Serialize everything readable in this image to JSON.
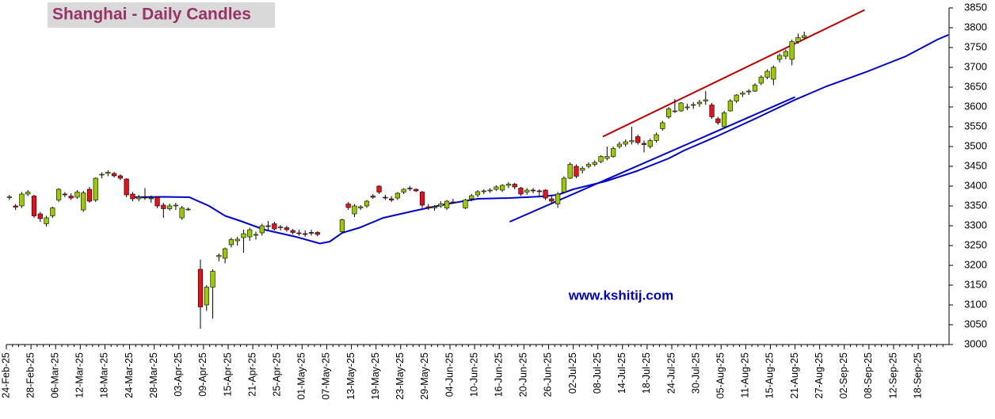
{
  "chart_data": {
    "type": "candlestick",
    "title": "Shanghai - Daily Candles",
    "watermark": "www.kshitij.com",
    "categories": [
      "24-Feb-25",
      null,
      null,
      null,
      "28-Feb-25",
      null,
      null,
      null,
      "06-Mar-25",
      null,
      null,
      null,
      "12-Mar-25",
      null,
      null,
      null,
      "18-Mar-25",
      null,
      null,
      null,
      "24-Mar-25",
      null,
      null,
      null,
      "28-Mar-25",
      null,
      null,
      null,
      "03-Apr-25",
      null,
      null,
      null,
      "09-Apr-25",
      null,
      null,
      null,
      "15-Apr-25",
      null,
      null,
      null,
      "21-Apr-25",
      null,
      null,
      null,
      "25-Apr-25",
      null,
      null,
      null,
      "01-May-25",
      null,
      null,
      null,
      "07-May-25",
      null,
      null,
      null,
      "13-May-25",
      null,
      null,
      null,
      "19-May-25",
      null,
      null,
      null,
      "23-May-25",
      null,
      null,
      null,
      "29-May-25",
      null,
      null,
      null,
      "04-Jun-25",
      null,
      null,
      null,
      "10-Jun-25",
      null,
      null,
      null,
      "16-Jun-25",
      null,
      null,
      null,
      "20-Jun-25",
      null,
      null,
      null,
      "26-Jun-25",
      null,
      null,
      null,
      "02-Jul-25",
      null,
      null,
      null,
      "08-Jul-25",
      null,
      null,
      null,
      "14-Jul-25",
      null,
      null,
      null,
      "18-Jul-25",
      null,
      null,
      null,
      "24-Jul-25",
      null,
      null,
      null,
      "30-Jul-25",
      null,
      null,
      null,
      "05-Aug-25",
      null,
      null,
      null,
      "11-Aug-25",
      null,
      null,
      null,
      "15-Aug-25",
      null,
      null,
      null,
      "21-Aug-25",
      null,
      null,
      null,
      "27-Aug-25",
      null,
      null,
      null,
      "02-Sep-25",
      null,
      null,
      null,
      "08-Sep-25",
      null,
      null,
      null,
      "12-Sep-25",
      null,
      null,
      null,
      "18-Sep-25",
      null,
      null,
      null,
      null
    ],
    "open": [
      3372,
      3350,
      3350,
      3380,
      3375,
      3330,
      3305,
      3325,
      3365,
      3380,
      3375,
      3372,
      3340,
      3392,
      3365,
      3428,
      3432,
      3432,
      3426,
      3418,
      3380,
      3368,
      3372,
      3368,
      3372,
      3352,
      3343,
      3350,
      3320,
      3342,
      null,
      3190,
      3100,
      3145,
      3222,
      3218,
      3252,
      3262,
      3270,
      3272,
      3277,
      3282,
      3300,
      3305,
      3296,
      3295,
      3288,
      3282,
      3280,
      3283,
      3283,
      null,
      null,
      null,
      3285,
      3355,
      3330,
      3345,
      3350,
      3375,
      3400,
      3372,
      3368,
      3370,
      3385,
      3395,
      3392,
      3385,
      3348,
      3345,
      3350,
      3345,
      3360,
      null,
      3345,
      3368,
      3378,
      3386,
      3388,
      3392,
      3390,
      3402,
      3405,
      3395,
      3385,
      3390,
      3388,
      3390,
      3368,
      3355,
      3385,
      3420,
      3450,
      3440,
      3450,
      3455,
      3462,
      3470,
      3475,
      3500,
      3506,
      3512,
      3525,
      3508,
      3500,
      3515,
      3545,
      3575,
      3590,
      3590,
      3600,
      3605,
      3608,
      3615,
      3605,
      3570,
      3550,
      3590,
      3615,
      3632,
      3638,
      3640,
      3660,
      3675,
      3670,
      3720,
      3728,
      3720,
      3765,
      3775,
      null,
      null,
      null,
      null,
      null,
      null,
      null,
      null,
      null,
      null,
      null,
      null,
      null,
      null,
      null,
      null,
      null,
      null,
      null,
      null,
      null,
      null,
      null
    ],
    "high": [
      3378,
      3355,
      3385,
      3390,
      3378,
      3335,
      3325,
      3348,
      3395,
      3385,
      3382,
      3390,
      3388,
      3398,
      3422,
      3435,
      3440,
      3436,
      3430,
      3420,
      3385,
      3378,
      3395,
      3376,
      3375,
      3358,
      3356,
      3358,
      3350,
      3346,
      null,
      3215,
      3150,
      3190,
      3230,
      3245,
      3270,
      3272,
      3290,
      3295,
      3285,
      3305,
      3312,
      3310,
      3302,
      3300,
      3292,
      3290,
      3288,
      3290,
      3286,
      null,
      null,
      null,
      3318,
      3360,
      3355,
      3352,
      3365,
      3380,
      3402,
      3378,
      3375,
      3385,
      3395,
      3400,
      3394,
      3388,
      3355,
      3352,
      3362,
      3365,
      3368,
      null,
      3368,
      3380,
      3390,
      3392,
      3395,
      3402,
      3405,
      3410,
      3408,
      3398,
      3395,
      3395,
      3392,
      3392,
      3375,
      3385,
      3425,
      3460,
      3455,
      3450,
      3460,
      3465,
      3478,
      3500,
      3500,
      3512,
      3518,
      3550,
      3530,
      3515,
      3520,
      3535,
      3565,
      3600,
      3620,
      3612,
      3608,
      3612,
      3618,
      3640,
      3610,
      3575,
      3590,
      3620,
      3632,
      3640,
      3645,
      3660,
      3680,
      3695,
      3705,
      3735,
      3745,
      3770,
      3785,
      3790,
      null,
      null,
      null,
      null,
      null,
      null,
      null,
      null,
      null,
      null,
      null,
      null,
      null,
      null,
      null,
      null,
      null,
      null,
      null,
      null,
      null,
      null,
      null
    ],
    "low": [
      3365,
      3340,
      3345,
      3375,
      3320,
      3310,
      3298,
      3320,
      3360,
      3372,
      3365,
      3368,
      3335,
      3358,
      3360,
      3420,
      3425,
      3422,
      3415,
      3372,
      3362,
      3362,
      3365,
      3358,
      3345,
      3320,
      3338,
      3340,
      3315,
      3338,
      null,
      3040,
      3085,
      3065,
      3210,
      3205,
      3245,
      3250,
      3232,
      3262,
      3265,
      3275,
      3290,
      3288,
      3288,
      3285,
      3278,
      3275,
      3272,
      3275,
      3273,
      null,
      null,
      null,
      3282,
      3340,
      3322,
      3340,
      3345,
      3368,
      3380,
      3365,
      3360,
      3365,
      3380,
      3388,
      3385,
      3345,
      3340,
      3338,
      3345,
      3340,
      3355,
      null,
      3342,
      3362,
      3372,
      3380,
      3383,
      3388,
      3385,
      3395,
      3392,
      3375,
      3378,
      3382,
      3375,
      3365,
      3355,
      3345,
      3382,
      3418,
      3420,
      3432,
      3445,
      3450,
      3458,
      3465,
      3472,
      3495,
      3500,
      3505,
      3505,
      3485,
      3495,
      3510,
      3540,
      3570,
      3585,
      3588,
      3592,
      3595,
      3600,
      3605,
      3570,
      3555,
      3545,
      3588,
      3610,
      3625,
      3630,
      3638,
      3655,
      3670,
      3655,
      3712,
      3720,
      3705,
      3760,
      3770,
      null,
      null,
      null,
      null,
      null,
      null,
      null,
      null,
      null,
      null,
      null,
      null,
      null,
      null,
      null,
      null,
      null,
      null,
      null,
      null,
      null,
      null,
      null
    ],
    "close": [
      3373,
      3347,
      3380,
      3385,
      3325,
      3318,
      3320,
      3345,
      3392,
      3378,
      3370,
      3385,
      3383,
      3362,
      3420,
      3430,
      3435,
      3426,
      3420,
      3378,
      3368,
      3372,
      3370,
      3370,
      3350,
      3343,
      3350,
      3352,
      3345,
      3342,
      null,
      3095,
      3145,
      3185,
      3225,
      3242,
      3265,
      3266,
      3280,
      3290,
      3278,
      3300,
      3298,
      3292,
      3297,
      3290,
      3283,
      3280,
      3279,
      3282,
      3278,
      null,
      null,
      null,
      3315,
      3346,
      3350,
      3348,
      3362,
      3372,
      3385,
      3370,
      3365,
      3382,
      3392,
      3394,
      3388,
      3352,
      3345,
      3348,
      3355,
      3362,
      3358,
      null,
      3365,
      3376,
      3386,
      3388,
      3390,
      3398,
      3402,
      3405,
      3398,
      3380,
      3390,
      3388,
      3386,
      3370,
      3362,
      3380,
      3420,
      3455,
      3425,
      3445,
      3455,
      3460,
      3475,
      3475,
      3495,
      3506,
      3512,
      3515,
      3510,
      3505,
      3515,
      3530,
      3560,
      3595,
      3590,
      3610,
      3600,
      3606,
      3612,
      3618,
      3575,
      3560,
      3585,
      3615,
      3630,
      3635,
      3640,
      3655,
      3675,
      3690,
      3700,
      3730,
      3740,
      3765,
      3775,
      3780,
      null,
      null,
      null,
      null,
      null,
      null,
      null,
      null,
      null,
      null,
      null,
      null,
      null,
      null,
      null,
      null,
      null,
      null,
      null,
      null,
      null,
      null,
      null
    ],
    "up_color": "#99cc00",
    "down_color": "#e8101a",
    "ma": {
      "color": "#0000cc",
      "x": [
        20.1,
        24.7,
        29.2,
        32.4,
        35,
        37.5,
        41.4,
        46.5,
        50.4,
        52,
        54,
        56.8,
        60.7,
        65.8,
        71,
        76,
        81.2,
        86.4,
        89,
        91.5,
        96.7,
        101.8,
        107,
        109.5,
        114.7,
        121,
        127.5,
        132.6,
        139,
        145.5,
        150.6,
        152.4
      ],
      "values": [
        3372,
        3373,
        3372,
        3350,
        3325,
        3312,
        3290,
        3272,
        3255,
        3260,
        3282,
        3295,
        3320,
        3338,
        3355,
        3368,
        3370,
        3374,
        3378,
        3392,
        3412,
        3438,
        3470,
        3490,
        3525,
        3570,
        3618,
        3652,
        3688,
        3728,
        3770,
        3782
      ]
    },
    "trendlines": [
      {
        "color": "#c00000",
        "x": [
          96.3,
          138.8
        ],
        "values": [
          3525,
          3845
        ]
      },
      {
        "color": "#0000cc",
        "x": [
          81.2,
          127.5
        ],
        "values": [
          3310,
          3625
        ]
      }
    ],
    "ylim": [
      3000,
      3850
    ],
    "yticks": [
      3000,
      3050,
      3100,
      3150,
      3200,
      3250,
      3300,
      3350,
      3400,
      3450,
      3500,
      3550,
      3600,
      3650,
      3700,
      3750,
      3800,
      3850
    ]
  }
}
